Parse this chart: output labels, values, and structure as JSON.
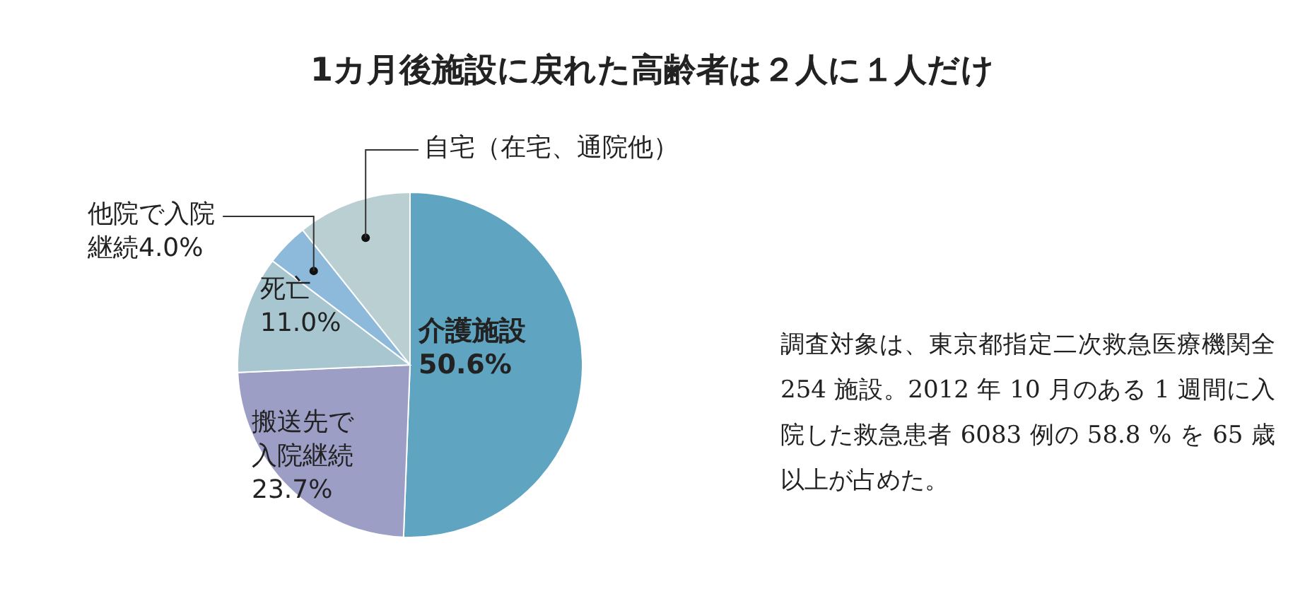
{
  "chart_data": {
    "type": "pie",
    "title": "1カ月後施設に戻れた高齢者は２人に１人だけ",
    "categories": [
      "介護施設",
      "搬送先で入院継続",
      "死亡",
      "他院で入院継続",
      "自宅（在宅、通院他）"
    ],
    "values": [
      50.6,
      23.7,
      11.0,
      4.0,
      10.7
    ],
    "value_labels": [
      "50.6%",
      "23.7%",
      "11.0%",
      "4.0%",
      null
    ],
    "colors": [
      "#5fa4c0",
      "#9c9ec6",
      "#a8c6d0",
      "#8db9da",
      "#bacfd2"
    ],
    "annotations": [
      "調査対象は、東京都指定二次救急医療機関全 254 施設。2012 年 10 月のある 1 週間に入院した救急患者 6083 例の 58.8 % を 65 歳以上が占めた。"
    ]
  }
}
